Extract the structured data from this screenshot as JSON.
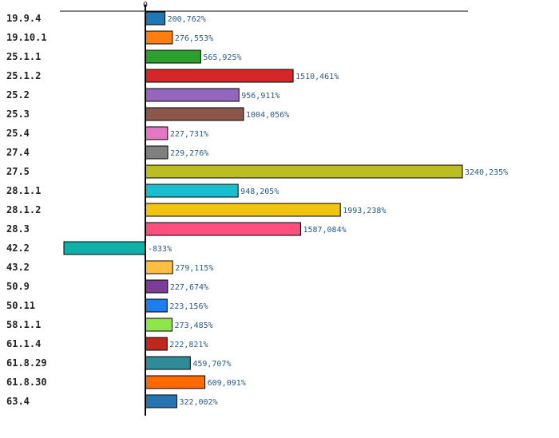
{
  "chart_data": {
    "type": "bar",
    "orientation": "horizontal",
    "title": "",
    "xlabel": "",
    "ylabel": "",
    "zero_tick_label": "0",
    "categories": [
      "19.9.4",
      "19.10.1",
      "25.1.1",
      "25.1.2",
      "25.2",
      "25.3",
      "25.4",
      "27.4",
      "27.5",
      "28.1.1",
      "28.1.2",
      "28.3",
      "42.2",
      "43.2",
      "50.9",
      "50.11",
      "58.1.1",
      "61.1.4",
      "61.8.29",
      "61.8.30",
      "63.4"
    ],
    "values": [
      200.762,
      276.553,
      565.925,
      1510.461,
      956.911,
      1004.056,
      227.731,
      229.276,
      3240.235,
      948.205,
      1993.238,
      1587.084,
      -833,
      279.115,
      227.674,
      223.156,
      273.485,
      222.821,
      459.707,
      609.091,
      322.002
    ],
    "value_labels": [
      "200,762%",
      "276,553%",
      "565,925%",
      "1510,461%",
      "956,911%",
      "1004,056%",
      "227,731%",
      "229,276%",
      "3240,235%",
      "948,205%",
      "1993,238%",
      "1587,084%",
      "-833%",
      "279,115%",
      "227,674%",
      "223,156%",
      "273,485%",
      "222,821%",
      "459,707%",
      "609,091%",
      "322,002%"
    ],
    "colors": [
      "#1f77b4",
      "#ff7f0e",
      "#2ca02c",
      "#d62728",
      "#9467bd",
      "#8c564b",
      "#e377c2",
      "#7f7f7f",
      "#bcbd22",
      "#17becf",
      "#f1c40f",
      "#ff4f7f",
      "#10b0a8",
      "#fdbf42",
      "#7d3c98",
      "#1e7ef0",
      "#8ee64a",
      "#c0281e",
      "#2e8b98",
      "#ff6a00",
      "#2874b0"
    ],
    "xlim": [
      -833,
      3240.235
    ]
  }
}
